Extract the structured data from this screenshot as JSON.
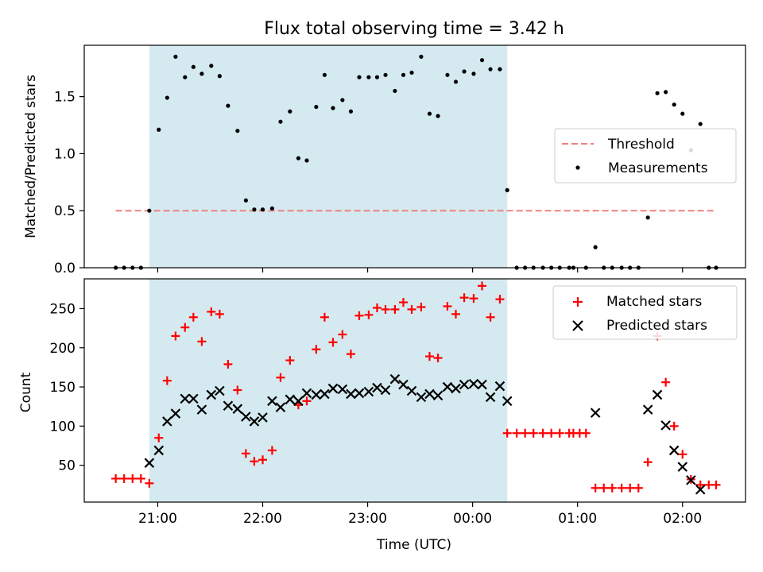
{
  "figure": {
    "title": "Flux total observing time = 3.42 h"
  },
  "colors": {
    "shade": "#d4eaf0",
    "threshold": "#f08080",
    "measurement": "#000000",
    "matched": "#ff0000",
    "predicted": "#000000"
  },
  "chart_data": [
    {
      "type": "scatter",
      "panel": "top",
      "xlabel": "",
      "ylabel": "Matched/Predicted stars",
      "x_unit": "hours since 21:00 UTC",
      "xlim": [
        -0.7,
        5.6
      ],
      "ylim": [
        0.0,
        1.95
      ],
      "yticks": [
        0.0,
        0.5,
        1.0,
        1.5
      ],
      "ytick_labels": [
        "0.0",
        "0.5",
        "1.0",
        "1.5"
      ],
      "grid": false,
      "shaded_interval": [
        -0.08,
        3.33
      ],
      "threshold": {
        "name": "Threshold",
        "y": 0.5,
        "x_range": [
          -0.4,
          5.32
        ]
      },
      "legend": {
        "position": "center-right",
        "entries": [
          "Threshold",
          "Measurements"
        ]
      },
      "series": [
        {
          "name": "Measurements",
          "marker": "dot",
          "points": [
            [
              -0.4,
              0
            ],
            [
              -0.32,
              0
            ],
            [
              -0.24,
              0
            ],
            [
              -0.16,
              0
            ],
            [
              -0.08,
              0.5
            ],
            [
              0.01,
              1.21
            ],
            [
              0.09,
              1.49
            ],
            [
              0.17,
              1.85
            ],
            [
              0.26,
              1.67
            ],
            [
              0.34,
              1.76
            ],
            [
              0.42,
              1.7
            ],
            [
              0.51,
              1.77
            ],
            [
              0.59,
              1.68
            ],
            [
              0.67,
              1.42
            ],
            [
              0.76,
              1.2
            ],
            [
              0.84,
              0.59
            ],
            [
              0.92,
              0.51
            ],
            [
              1.0,
              0.51
            ],
            [
              1.09,
              0.52
            ],
            [
              1.17,
              1.28
            ],
            [
              1.26,
              1.37
            ],
            [
              1.34,
              0.96
            ],
            [
              1.42,
              0.94
            ],
            [
              1.51,
              1.41
            ],
            [
              1.59,
              1.69
            ],
            [
              1.67,
              1.4
            ],
            [
              1.76,
              1.47
            ],
            [
              1.84,
              1.37
            ],
            [
              1.92,
              1.67
            ],
            [
              2.01,
              1.67
            ],
            [
              2.09,
              1.67
            ],
            [
              2.17,
              1.69
            ],
            [
              2.26,
              1.55
            ],
            [
              2.34,
              1.69
            ],
            [
              2.42,
              1.71
            ],
            [
              2.51,
              1.85
            ],
            [
              2.59,
              1.35
            ],
            [
              2.67,
              1.33
            ],
            [
              2.76,
              1.69
            ],
            [
              2.84,
              1.63
            ],
            [
              2.92,
              1.72
            ],
            [
              3.01,
              1.7
            ],
            [
              3.09,
              1.82
            ],
            [
              3.17,
              1.74
            ],
            [
              3.26,
              1.74
            ],
            [
              3.33,
              0.68
            ],
            [
              3.42,
              0
            ],
            [
              3.5,
              0
            ],
            [
              3.58,
              0
            ],
            [
              3.67,
              0
            ],
            [
              3.75,
              0
            ],
            [
              3.83,
              0
            ],
            [
              3.92,
              0
            ],
            [
              3.96,
              0
            ],
            [
              4.08,
              0
            ],
            [
              4.17,
              0.18
            ],
            [
              4.25,
              0
            ],
            [
              4.33,
              0
            ],
            [
              4.42,
              0
            ],
            [
              4.5,
              0
            ],
            [
              4.58,
              0
            ],
            [
              4.67,
              0.44
            ],
            [
              4.76,
              1.53
            ],
            [
              4.84,
              1.54
            ],
            [
              4.92,
              1.43
            ],
            [
              5.0,
              1.35
            ],
            [
              5.08,
              1.03
            ],
            [
              5.17,
              1.26
            ],
            [
              5.25,
              0
            ],
            [
              5.32,
              0
            ]
          ]
        }
      ]
    },
    {
      "type": "scatter",
      "panel": "bottom",
      "xlabel": "Time (UTC)",
      "ylabel": "Count",
      "x_unit": "hours since 21:00 UTC",
      "xlim": [
        -0.7,
        5.6
      ],
      "ylim": [
        3,
        288
      ],
      "xticks": [
        0,
        1,
        2,
        3,
        4,
        5
      ],
      "xtick_labels": [
        "21:00",
        "22:00",
        "23:00",
        "00:00",
        "01:00",
        "02:00"
      ],
      "yticks": [
        50,
        100,
        150,
        200,
        250
      ],
      "ytick_labels": [
        "50",
        "100",
        "150",
        "200",
        "250"
      ],
      "grid": false,
      "shaded_interval": [
        -0.08,
        3.33
      ],
      "legend": {
        "position": "top-right",
        "entries": [
          "Matched stars",
          "Predicted stars"
        ]
      },
      "series": [
        {
          "name": "Matched stars",
          "marker": "plus",
          "points": [
            [
              -0.4,
              33
            ],
            [
              -0.32,
              33
            ],
            [
              -0.24,
              33
            ],
            [
              -0.16,
              33
            ],
            [
              -0.08,
              27
            ],
            [
              0.01,
              85
            ],
            [
              0.09,
              158
            ],
            [
              0.17,
              215
            ],
            [
              0.26,
              226
            ],
            [
              0.34,
              239
            ],
            [
              0.42,
              208
            ],
            [
              0.51,
              246
            ],
            [
              0.59,
              243
            ],
            [
              0.67,
              179
            ],
            [
              0.76,
              146
            ],
            [
              0.84,
              65
            ],
            [
              0.92,
              55
            ],
            [
              1.0,
              57
            ],
            [
              1.09,
              69
            ],
            [
              1.17,
              162
            ],
            [
              1.26,
              184
            ],
            [
              1.34,
              127
            ],
            [
              1.42,
              132
            ],
            [
              1.51,
              198
            ],
            [
              1.59,
              239
            ],
            [
              1.67,
              207
            ],
            [
              1.76,
              217
            ],
            [
              1.84,
              192
            ],
            [
              1.92,
              241
            ],
            [
              2.01,
              242
            ],
            [
              2.09,
              251
            ],
            [
              2.17,
              249
            ],
            [
              2.26,
              249
            ],
            [
              2.34,
              258
            ],
            [
              2.42,
              249
            ],
            [
              2.51,
              252
            ],
            [
              2.59,
              189
            ],
            [
              2.67,
              187
            ],
            [
              2.76,
              253
            ],
            [
              2.84,
              243
            ],
            [
              2.92,
              264
            ],
            [
              3.01,
              263
            ],
            [
              3.09,
              279
            ],
            [
              3.17,
              239
            ],
            [
              3.26,
              262
            ],
            [
              3.33,
              91
            ],
            [
              3.42,
              91
            ],
            [
              3.5,
              91
            ],
            [
              3.58,
              91
            ],
            [
              3.67,
              91
            ],
            [
              3.75,
              91
            ],
            [
              3.83,
              91
            ],
            [
              3.92,
              91
            ],
            [
              3.96,
              91
            ],
            [
              4.02,
              91
            ],
            [
              4.08,
              91
            ],
            [
              4.17,
              21
            ],
            [
              4.25,
              21
            ],
            [
              4.33,
              21
            ],
            [
              4.42,
              21
            ],
            [
              4.5,
              21
            ],
            [
              4.58,
              21
            ],
            [
              4.67,
              54
            ],
            [
              4.76,
              215
            ],
            [
              4.84,
              156
            ],
            [
              4.92,
              100
            ],
            [
              5.0,
              64
            ],
            [
              5.08,
              32
            ],
            [
              5.17,
              25
            ],
            [
              5.25,
              25
            ],
            [
              5.32,
              25
            ]
          ]
        },
        {
          "name": "Predicted stars",
          "marker": "x",
          "points": [
            [
              -0.08,
              53
            ],
            [
              0.01,
              69
            ],
            [
              0.09,
              106
            ],
            [
              0.17,
              116
            ],
            [
              0.26,
              135
            ],
            [
              0.34,
              135
            ],
            [
              0.42,
              121
            ],
            [
              0.51,
              140
            ],
            [
              0.59,
              145
            ],
            [
              0.67,
              126
            ],
            [
              0.76,
              122
            ],
            [
              0.84,
              112
            ],
            [
              0.92,
              106
            ],
            [
              1.0,
              111
            ],
            [
              1.09,
              132
            ],
            [
              1.17,
              124
            ],
            [
              1.26,
              134
            ],
            [
              1.34,
              132
            ],
            [
              1.42,
              142
            ],
            [
              1.51,
              140
            ],
            [
              1.59,
              141
            ],
            [
              1.67,
              148
            ],
            [
              1.76,
              147
            ],
            [
              1.84,
              141
            ],
            [
              1.92,
              142
            ],
            [
              2.01,
              144
            ],
            [
              2.09,
              149
            ],
            [
              2.17,
              146
            ],
            [
              2.26,
              160
            ],
            [
              2.34,
              153
            ],
            [
              2.42,
              145
            ],
            [
              2.51,
              137
            ],
            [
              2.59,
              141
            ],
            [
              2.67,
              139
            ],
            [
              2.76,
              150
            ],
            [
              2.84,
              148
            ],
            [
              2.92,
              153
            ],
            [
              3.01,
              154
            ],
            [
              3.09,
              153
            ],
            [
              3.17,
              137
            ],
            [
              3.26,
              151
            ],
            [
              3.33,
              132
            ],
            [
              4.17,
              117
            ],
            [
              4.67,
              121
            ],
            [
              4.76,
              140
            ],
            [
              4.84,
              101
            ],
            [
              4.92,
              69
            ],
            [
              5.0,
              48
            ],
            [
              5.08,
              31
            ],
            [
              5.17,
              19
            ]
          ]
        }
      ]
    }
  ]
}
